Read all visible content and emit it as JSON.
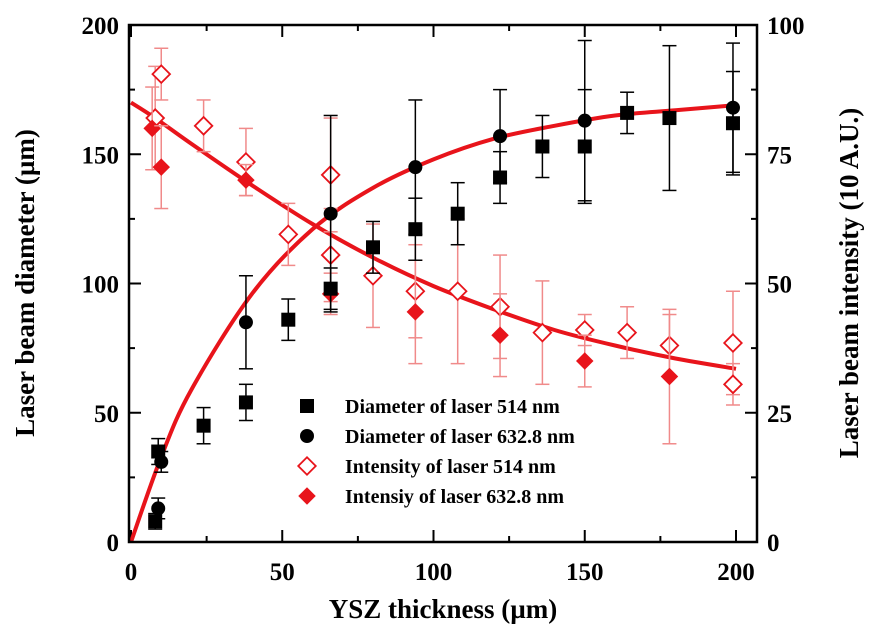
{
  "chart_data": {
    "type": "scatter",
    "title": "",
    "xlabel": "YSZ thickness   (µm)",
    "ylabel": "Laser beam diameter (µm)",
    "y2label": "Laser beam intensity (10 A.U.)",
    "xlim": [
      0,
      210
    ],
    "ylim": [
      0,
      200
    ],
    "y2lim": [
      0,
      100
    ],
    "x_ticks": [
      0,
      50,
      100,
      150,
      200
    ],
    "y_ticks": [
      0,
      50,
      100,
      150,
      200
    ],
    "y2_ticks": [
      0,
      25,
      50,
      75,
      100
    ],
    "grid": false,
    "legend_position": "bottom-center",
    "colors": {
      "black": "#000000",
      "red": "#e8141b",
      "light_red": "#f08a8a"
    },
    "series": [
      {
        "name": "Diameter of laser 514 nm",
        "axis": "left",
        "marker": "square",
        "color": "#000000",
        "points": [
          {
            "x": 8,
            "y": 8,
            "err": 3
          },
          {
            "x": 9,
            "y": 35,
            "err": 5
          },
          {
            "x": 24,
            "y": 45,
            "err": 7
          },
          {
            "x": 38,
            "y": 54,
            "err": 7
          },
          {
            "x": 52,
            "y": 86,
            "err": 8
          },
          {
            "x": 66,
            "y": 98,
            "err": 8
          },
          {
            "x": 80,
            "y": 114,
            "err": 10
          },
          {
            "x": 94,
            "y": 121,
            "err": 12
          },
          {
            "x": 108,
            "y": 127,
            "err": 12
          },
          {
            "x": 122,
            "y": 141,
            "err": 10
          },
          {
            "x": 136,
            "y": 153,
            "err": 12
          },
          {
            "x": 150,
            "y": 153,
            "err": 22
          },
          {
            "x": 164,
            "y": 166,
            "err": 8
          },
          {
            "x": 178,
            "y": 164,
            "err": 28
          },
          {
            "x": 199,
            "y": 162,
            "err": 20
          }
        ]
      },
      {
        "name": "Diameter of laser 632.8 nm",
        "axis": "left",
        "marker": "circle",
        "color": "#000000",
        "points": [
          {
            "x": 9,
            "y": 13,
            "err": 4
          },
          {
            "x": 10,
            "y": 31,
            "err": 4
          },
          {
            "x": 38,
            "y": 85,
            "err": 18
          },
          {
            "x": 66,
            "y": 127,
            "err": 38
          },
          {
            "x": 94,
            "y": 145,
            "err": 26
          },
          {
            "x": 122,
            "y": 157,
            "err": 18
          },
          {
            "x": 150,
            "y": 163,
            "err": 31
          },
          {
            "x": 199,
            "y": 168,
            "err": 25
          }
        ]
      },
      {
        "name": "Intensity of laser 514 nm",
        "axis": "right",
        "marker": "diamond-open",
        "color": "#e8141b",
        "points": [
          {
            "x": 8,
            "y": 82,
            "err": 10
          },
          {
            "x": 10,
            "y": 90.5,
            "err": 5
          },
          {
            "x": 24,
            "y": 80.5,
            "err": 5
          },
          {
            "x": 38,
            "y": 73.5,
            "err": 6.5
          },
          {
            "x": 52,
            "y": 59.5,
            "err": 6
          },
          {
            "x": 66,
            "y": 71,
            "err": 11
          },
          {
            "x": 66,
            "y": 55.5,
            "err": 9
          },
          {
            "x": 80,
            "y": 51.5,
            "err": 10
          },
          {
            "x": 94,
            "y": 48.5,
            "err": 9
          },
          {
            "x": 108,
            "y": 48.5,
            "err": 14
          },
          {
            "x": 122,
            "y": 45.5,
            "err": 10
          },
          {
            "x": 136,
            "y": 40.5,
            "err": 10
          },
          {
            "x": 150,
            "y": 41,
            "err": 3
          },
          {
            "x": 164,
            "y": 40.5,
            "err": 5
          },
          {
            "x": 178,
            "y": 38,
            "err": 6
          },
          {
            "x": 199,
            "y": 38.5,
            "err": 10
          },
          {
            "x": 199,
            "y": 30.5,
            "err": 4
          }
        ]
      },
      {
        "name": "Intensiy of laser 632.8 nm",
        "axis": "right",
        "marker": "diamond",
        "color": "#e8141b",
        "points": [
          {
            "x": 7,
            "y": 80,
            "err": 8
          },
          {
            "x": 10,
            "y": 72.5,
            "err": 8
          },
          {
            "x": 38,
            "y": 70,
            "err": 3
          },
          {
            "x": 66,
            "y": 48,
            "err": 4
          },
          {
            "x": 94,
            "y": 44.5,
            "err": 10
          },
          {
            "x": 122,
            "y": 40,
            "err": 8
          },
          {
            "x": 150,
            "y": 35,
            "err": 5
          },
          {
            "x": 178,
            "y": 32,
            "err": 13
          }
        ]
      }
    ],
    "fit_curves": [
      {
        "color": "#e8141b",
        "axis": "left",
        "points": [
          [
            0,
            0
          ],
          [
            10,
            33
          ],
          [
            20,
            59
          ],
          [
            40,
            96
          ],
          [
            60,
            121
          ],
          [
            80,
            137
          ],
          [
            100,
            148
          ],
          [
            120,
            156
          ],
          [
            140,
            161
          ],
          [
            160,
            165
          ],
          [
            180,
            167
          ],
          [
            200,
            169
          ]
        ]
      },
      {
        "color": "#e8141b",
        "axis": "right",
        "points": [
          [
            0,
            85
          ],
          [
            8,
            82
          ],
          [
            20,
            77
          ],
          [
            40,
            69
          ],
          [
            60,
            61.5
          ],
          [
            80,
            55
          ],
          [
            100,
            49.5
          ],
          [
            120,
            45
          ],
          [
            140,
            41
          ],
          [
            160,
            38
          ],
          [
            180,
            35.5
          ],
          [
            200,
            33.5
          ]
        ]
      }
    ]
  }
}
